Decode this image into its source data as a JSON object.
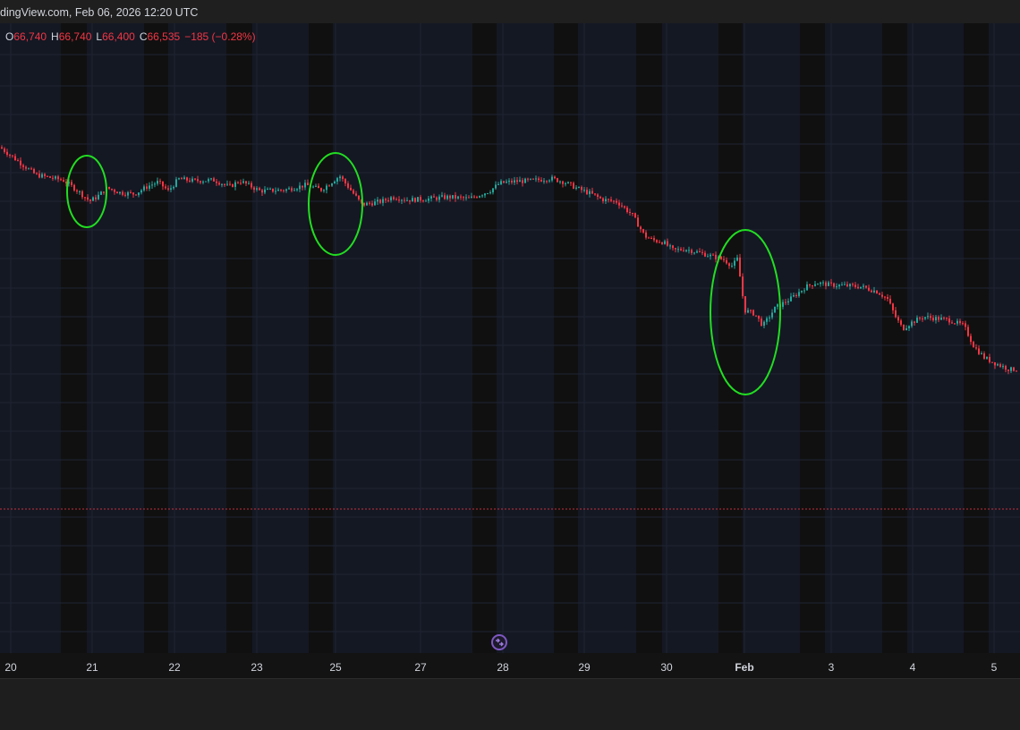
{
  "header": {
    "source_text": "dingView.com, Feb 06, 2026 12:20 UTC"
  },
  "ohlc": {
    "o_label": "O",
    "o_value": "66,740",
    "h_label": "H",
    "h_value": "66,740",
    "l_label": "L",
    "l_value": "66,400",
    "c_label": "C",
    "c_value": "66,535",
    "change": "−185 (−0.28%)"
  },
  "colors": {
    "up": "#26a69a",
    "down": "#f23645",
    "session_bg": "#141823",
    "offhours_bg": "#101010",
    "grid": "#1f2433",
    "annotation": "#22dd22",
    "price_line": "#f23645"
  },
  "chart_data": {
    "type": "candlestick",
    "x_ticks": [
      "20",
      "21",
      "22",
      "23",
      "25",
      "27",
      "28",
      "29",
      "30",
      "Feb",
      "3",
      "4",
      "5"
    ],
    "bold_ticks": [
      "Feb"
    ],
    "y_range_relative": [
      0,
      1
    ],
    "close_path": [
      [
        0.0,
        0.838
      ],
      [
        0.035,
        0.792
      ],
      [
        0.062,
        0.783
      ],
      [
        0.075,
        0.767
      ],
      [
        0.088,
        0.748
      ],
      [
        0.095,
        0.755
      ],
      [
        0.105,
        0.77
      ],
      [
        0.118,
        0.762
      ],
      [
        0.132,
        0.76
      ],
      [
        0.145,
        0.773
      ],
      [
        0.155,
        0.78
      ],
      [
        0.165,
        0.765
      ],
      [
        0.175,
        0.785
      ],
      [
        0.19,
        0.782
      ],
      [
        0.21,
        0.783
      ],
      [
        0.225,
        0.772
      ],
      [
        0.235,
        0.782
      ],
      [
        0.255,
        0.765
      ],
      [
        0.28,
        0.767
      ],
      [
        0.3,
        0.775
      ],
      [
        0.315,
        0.767
      ],
      [
        0.333,
        0.79
      ],
      [
        0.345,
        0.764
      ],
      [
        0.355,
        0.742
      ],
      [
        0.375,
        0.748
      ],
      [
        0.385,
        0.755
      ],
      [
        0.4,
        0.75
      ],
      [
        0.42,
        0.752
      ],
      [
        0.44,
        0.755
      ],
      [
        0.46,
        0.752
      ],
      [
        0.48,
        0.765
      ],
      [
        0.49,
        0.778
      ],
      [
        0.505,
        0.781
      ],
      [
        0.52,
        0.782
      ],
      [
        0.54,
        0.786
      ],
      [
        0.553,
        0.78
      ],
      [
        0.565,
        0.77
      ],
      [
        0.58,
        0.76
      ],
      [
        0.59,
        0.751
      ],
      [
        0.605,
        0.747
      ],
      [
        0.62,
        0.725
      ],
      [
        0.632,
        0.69
      ],
      [
        0.64,
        0.683
      ],
      [
        0.65,
        0.68
      ],
      [
        0.66,
        0.666
      ],
      [
        0.672,
        0.668
      ],
      [
        0.69,
        0.66
      ],
      [
        0.7,
        0.655
      ],
      [
        0.71,
        0.65
      ],
      [
        0.718,
        0.64
      ],
      [
        0.723,
        0.652
      ],
      [
        0.73,
        0.566
      ],
      [
        0.74,
        0.56
      ],
      [
        0.748,
        0.54
      ],
      [
        0.76,
        0.57
      ],
      [
        0.775,
        0.585
      ],
      [
        0.79,
        0.605
      ],
      [
        0.8,
        0.612
      ],
      [
        0.815,
        0.608
      ],
      [
        0.83,
        0.607
      ],
      [
        0.845,
        0.605
      ],
      [
        0.86,
        0.597
      ],
      [
        0.87,
        0.585
      ],
      [
        0.878,
        0.555
      ],
      [
        0.885,
        0.535
      ],
      [
        0.893,
        0.545
      ],
      [
        0.905,
        0.555
      ],
      [
        0.915,
        0.553
      ],
      [
        0.93,
        0.55
      ],
      [
        0.945,
        0.54
      ],
      [
        0.955,
        0.505
      ],
      [
        0.965,
        0.487
      ],
      [
        0.975,
        0.478
      ],
      [
        0.99,
        0.467
      ],
      [
        1.0,
        0.468
      ]
    ],
    "highlighted_regions": 3
  }
}
